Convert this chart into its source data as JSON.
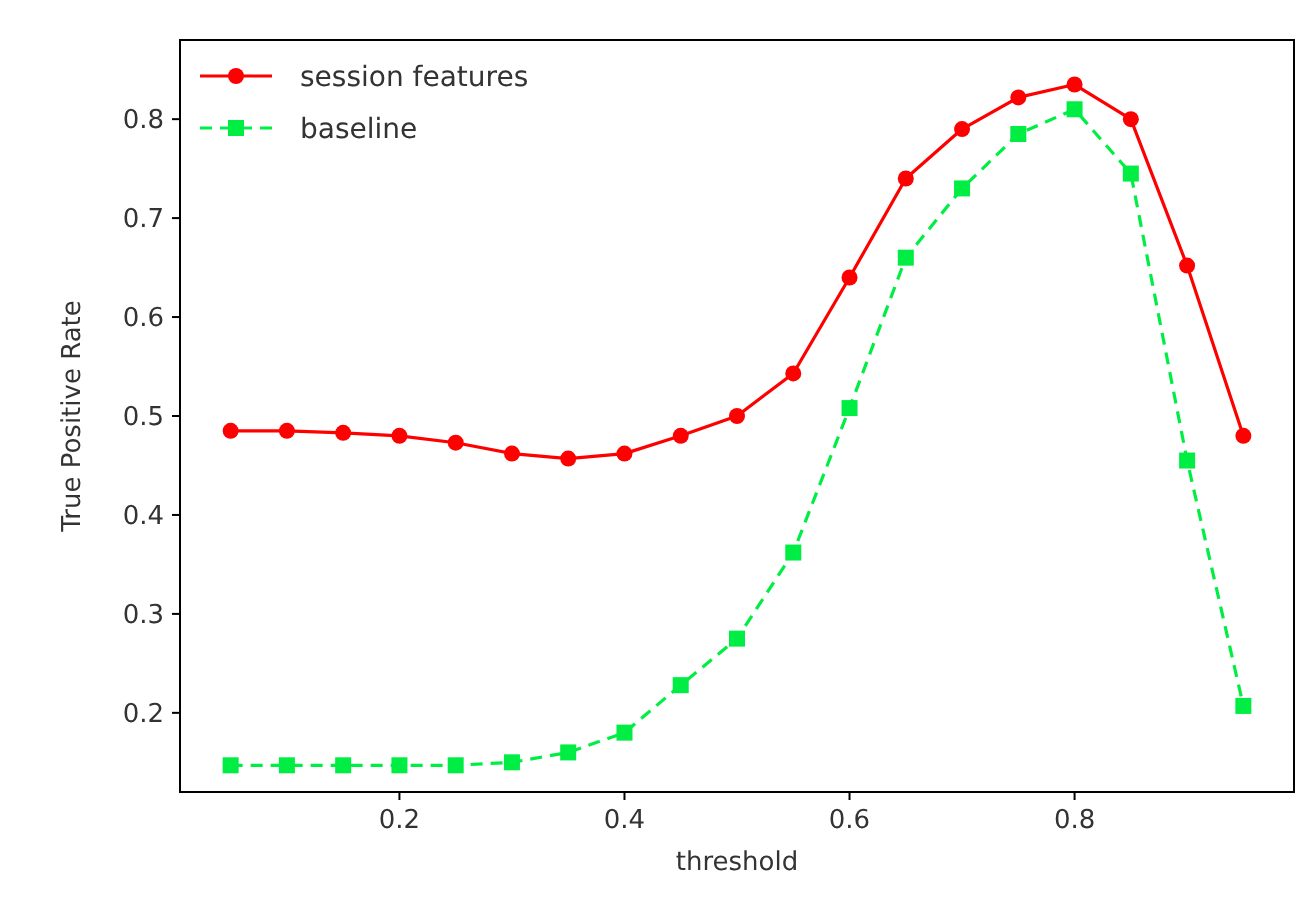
{
  "chart_data": {
    "type": "line",
    "xlabel": "threshold",
    "ylabel": "True Positive Rate",
    "x": [
      0.05,
      0.1,
      0.15,
      0.2,
      0.25,
      0.3,
      0.35,
      0.4,
      0.45,
      0.5,
      0.55,
      0.6,
      0.65,
      0.7,
      0.75,
      0.8,
      0.85,
      0.9,
      0.95
    ],
    "series": [
      {
        "name": "session features",
        "color": "#ff0000",
        "marker": "circle",
        "line_style": "solid",
        "values": [
          0.485,
          0.485,
          0.483,
          0.48,
          0.473,
          0.462,
          0.457,
          0.462,
          0.48,
          0.5,
          0.543,
          0.64,
          0.74,
          0.79,
          0.822,
          0.835,
          0.8,
          0.652,
          0.48
        ]
      },
      {
        "name": "baseline",
        "color": "#00ee44",
        "marker": "square",
        "line_style": "dashed",
        "values": [
          0.147,
          0.147,
          0.147,
          0.147,
          0.147,
          0.15,
          0.16,
          0.18,
          0.228,
          0.275,
          0.362,
          0.508,
          0.66,
          0.73,
          0.785,
          0.81,
          0.745,
          0.455,
          0.207
        ]
      }
    ],
    "xlim": [
      0.005,
      0.995
    ],
    "ylim": [
      0.12,
      0.88
    ],
    "xticks": [
      0.2,
      0.4,
      0.6,
      0.8
    ],
    "yticks": [
      0.2,
      0.3,
      0.4,
      0.5,
      0.6,
      0.7,
      0.8
    ],
    "grid": false,
    "legend": "top left"
  }
}
